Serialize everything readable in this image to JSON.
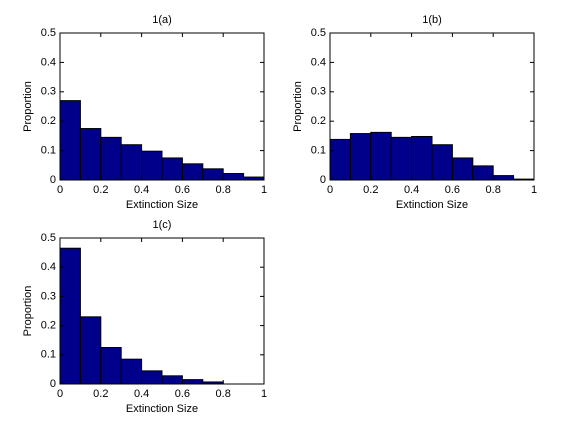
{
  "chart_data": [
    {
      "type": "histogram",
      "title": "1(a)",
      "xlabel": "Extinction Size",
      "ylabel": "Proportion",
      "bins": [
        0,
        0.1,
        0.2,
        0.3,
        0.4,
        0.5,
        0.6,
        0.7,
        0.8,
        0.9,
        1
      ],
      "values": [
        0.27,
        0.175,
        0.145,
        0.12,
        0.098,
        0.075,
        0.055,
        0.038,
        0.022,
        0.01
      ],
      "color": "#00008b",
      "xlim": [
        0,
        1
      ],
      "ylim": [
        0,
        0.5
      ],
      "xticks": [
        0,
        0.2,
        0.4,
        0.6,
        0.8,
        1
      ],
      "yticks": [
        0,
        0.1,
        0.2,
        0.3,
        0.4,
        0.5
      ]
    },
    {
      "type": "histogram",
      "title": "1(b)",
      "xlabel": "Extinction Size",
      "ylabel": "Proportion",
      "bins": [
        0,
        0.1,
        0.2,
        0.3,
        0.4,
        0.5,
        0.6,
        0.7,
        0.8,
        0.9,
        1
      ],
      "values": [
        0.138,
        0.158,
        0.162,
        0.145,
        0.148,
        0.12,
        0.075,
        0.048,
        0.015,
        0.003
      ],
      "color": "#00008b",
      "xlim": [
        0,
        1
      ],
      "ylim": [
        0,
        0.5
      ],
      "xticks": [
        0,
        0.2,
        0.4,
        0.6,
        0.8,
        1
      ],
      "yticks": [
        0,
        0.1,
        0.2,
        0.3,
        0.4,
        0.5
      ]
    },
    {
      "type": "histogram",
      "title": "1(c)",
      "xlabel": "Extinction Size",
      "ylabel": "Proportion",
      "bins": [
        0,
        0.1,
        0.2,
        0.3,
        0.4,
        0.5,
        0.6,
        0.7,
        0.8,
        0.9,
        1
      ],
      "values": [
        0.465,
        0.23,
        0.125,
        0.085,
        0.045,
        0.028,
        0.015,
        0.007,
        0,
        0
      ],
      "color": "#00008b",
      "xlim": [
        0,
        1
      ],
      "ylim": [
        0,
        0.5
      ],
      "xticks": [
        0,
        0.2,
        0.4,
        0.6,
        0.8,
        1
      ],
      "yticks": [
        0,
        0.1,
        0.2,
        0.3,
        0.4,
        0.5
      ]
    }
  ]
}
